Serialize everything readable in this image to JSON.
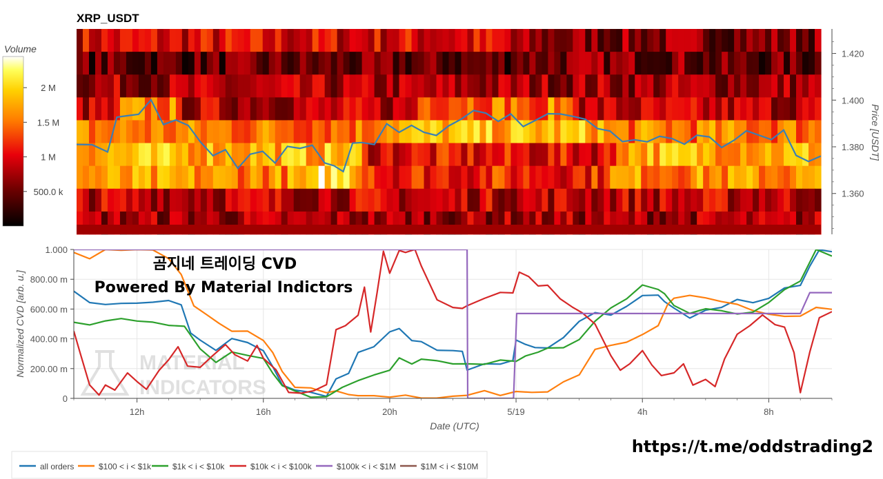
{
  "chart_data": [
    {
      "type": "heatmap",
      "title": "XRP_USDT",
      "ylabel": "Price [USDT]",
      "yticks": [
        "1.420",
        "1.400",
        "1.380",
        "1.360"
      ],
      "ytick_values": [
        1.42,
        1.4,
        1.38,
        1.36
      ],
      "ylim": [
        1.3425,
        1.4305
      ],
      "colorbar": {
        "title": "Volume",
        "ticks": [
          "2 M",
          "1.5 M",
          "1 M",
          "500.0 k"
        ],
        "tick_values": [
          2000000,
          1500000,
          1000000,
          500000
        ],
        "range": [
          0,
          2450000
        ]
      },
      "price_line": {
        "color": "#3a7fb5",
        "x": [
          10.0,
          10.5,
          11.0,
          11.3,
          11.6,
          12.0,
          12.4,
          12.8,
          13.2,
          13.6,
          14.0,
          14.4,
          14.8,
          15.2,
          15.6,
          16.0,
          16.4,
          16.8,
          17.2,
          17.6,
          18.0,
          18.3,
          18.6,
          18.9,
          19.2,
          19.6,
          20.0,
          20.4,
          20.8,
          21.2,
          21.6,
          22.0,
          22.4,
          22.8,
          23.2,
          23.6,
          24.0,
          24.4,
          24.8,
          25.2,
          25.6,
          26.0,
          26.4,
          26.8,
          27.2,
          27.6,
          28.0,
          28.4,
          28.8,
          29.2,
          29.6,
          30.0,
          30.4,
          30.8,
          31.2,
          31.6,
          32.0,
          32.4,
          32.8,
          33.2,
          33.6,
          34.0
        ],
        "y": [
          1.381,
          1.38,
          1.379,
          1.392,
          1.393,
          1.395,
          1.399,
          1.39,
          1.392,
          1.388,
          1.383,
          1.376,
          1.378,
          1.372,
          1.376,
          1.378,
          1.374,
          1.379,
          1.38,
          1.381,
          1.372,
          1.373,
          1.369,
          1.381,
          1.383,
          1.38,
          1.39,
          1.387,
          1.388,
          1.387,
          1.385,
          1.388,
          1.393,
          1.395,
          1.394,
          1.392,
          1.393,
          1.389,
          1.392,
          1.393,
          1.395,
          1.393,
          1.391,
          1.389,
          1.386,
          1.382,
          1.384,
          1.381,
          1.385,
          1.384,
          1.38,
          1.386,
          1.384,
          1.379,
          1.384,
          1.386,
          1.385,
          1.384,
          1.386,
          1.377,
          1.374,
          1.375
        ]
      }
    },
    {
      "type": "line",
      "xlabel": "Date (UTC)",
      "ylabel": "Normalized CVD [arb. u.]",
      "xticks": [
        "12h",
        "16h",
        "20h",
        "5/19",
        "4h",
        "8h"
      ],
      "xtick_values": [
        12,
        16,
        20,
        24,
        28,
        32
      ],
      "xlim": [
        10,
        34
      ],
      "yticks": [
        "1.000",
        "800.00 m",
        "600.00 m",
        "400.00 m",
        "200.00 m",
        "0"
      ],
      "ytick_values": [
        1,
        0.8,
        0.6,
        0.4,
        0.2,
        0
      ],
      "ylim": [
        0,
        1
      ],
      "legend_position": "bottom",
      "series": [
        {
          "name": "all orders",
          "color": "#1f77b4",
          "x": [
            10.0,
            10.5,
            11.0,
            11.5,
            12.0,
            12.5,
            13.0,
            13.4,
            13.7,
            14.0,
            14.5,
            15.0,
            15.5,
            16.0,
            16.3,
            16.6,
            17.0,
            17.5,
            18.0,
            18.3,
            18.7,
            19.0,
            19.5,
            20.0,
            20.3,
            20.7,
            21.0,
            21.5,
            22.0,
            22.3,
            22.45,
            23.0,
            23.5,
            23.9,
            24.0,
            24.3,
            24.6,
            25.0,
            25.5,
            26.0,
            26.5,
            27.0,
            27.5,
            28.0,
            28.5,
            28.7,
            29.0,
            29.5,
            30.0,
            30.5,
            31.0,
            31.5,
            32.0,
            32.5,
            33.0,
            33.3,
            33.6,
            34.0
          ],
          "y": [
            0.72,
            0.65,
            0.62,
            0.65,
            0.63,
            0.65,
            0.66,
            0.62,
            0.45,
            0.38,
            0.33,
            0.4,
            0.37,
            0.33,
            0.2,
            0.1,
            0.05,
            0.04,
            0.02,
            0.12,
            0.18,
            0.3,
            0.35,
            0.45,
            0.46,
            0.4,
            0.37,
            0.33,
            0.32,
            0.31,
            0.2,
            0.22,
            0.24,
            0.25,
            0.39,
            0.37,
            0.33,
            0.35,
            0.4,
            0.52,
            0.58,
            0.55,
            0.63,
            0.68,
            0.7,
            0.65,
            0.6,
            0.55,
            0.58,
            0.62,
            0.66,
            0.64,
            0.68,
            0.73,
            0.77,
            0.88,
            1.0,
            0.99
          ]
        },
        {
          "name": "$100 < i < $1k",
          "color": "#ff7f0e",
          "x": [
            10.0,
            10.5,
            11.0,
            11.5,
            12.0,
            12.5,
            13.0,
            13.4,
            13.8,
            14.2,
            14.6,
            15.0,
            15.5,
            16.0,
            16.3,
            16.6,
            17.0,
            17.5,
            18.0,
            18.3,
            18.7,
            19.0,
            19.5,
            20.0,
            20.5,
            21.0,
            21.5,
            22.0,
            22.45,
            23.0,
            23.5,
            24.0,
            24.5,
            25.0,
            25.5,
            26.0,
            26.5,
            27.0,
            27.5,
            28.0,
            28.5,
            28.8,
            29.0,
            29.5,
            30.0,
            30.5,
            31.0,
            31.5,
            32.0,
            32.5,
            33.0,
            33.5,
            34.0
          ],
          "y": [
            0.97,
            0.95,
            1.0,
            1.0,
            1.0,
            0.99,
            0.95,
            0.82,
            0.63,
            0.56,
            0.5,
            0.46,
            0.44,
            0.4,
            0.3,
            0.18,
            0.08,
            0.06,
            0.05,
            0.04,
            0.03,
            0.02,
            0.01,
            0.02,
            0.01,
            0.01,
            0.0,
            0.01,
            0.03,
            0.04,
            0.03,
            0.04,
            0.04,
            0.05,
            0.1,
            0.17,
            0.32,
            0.36,
            0.38,
            0.42,
            0.5,
            0.62,
            0.68,
            0.69,
            0.67,
            0.66,
            0.62,
            0.6,
            0.56,
            0.55,
            0.56,
            0.6,
            0.61
          ]
        },
        {
          "name": "$1k < i < $10k",
          "color": "#2ca02c",
          "x": [
            10.0,
            10.5,
            11.0,
            11.5,
            12.0,
            12.5,
            13.0,
            13.5,
            14.0,
            14.5,
            15.0,
            15.5,
            16.0,
            16.3,
            16.6,
            17.0,
            17.5,
            18.0,
            18.5,
            19.0,
            19.5,
            20.0,
            20.3,
            20.7,
            21.0,
            21.5,
            22.0,
            22.45,
            23.0,
            23.5,
            24.0,
            24.3,
            24.7,
            25.0,
            25.5,
            26.0,
            26.5,
            27.0,
            27.5,
            28.0,
            28.5,
            28.7,
            29.0,
            29.5,
            30.0,
            30.5,
            31.0,
            31.5,
            32.0,
            32.5,
            33.0,
            33.5,
            34.0
          ],
          "y": [
            0.5,
            0.5,
            0.52,
            0.53,
            0.53,
            0.5,
            0.5,
            0.48,
            0.33,
            0.25,
            0.3,
            0.3,
            0.26,
            0.17,
            0.09,
            0.04,
            0.02,
            0.0,
            0.08,
            0.12,
            0.15,
            0.2,
            0.26,
            0.24,
            0.26,
            0.25,
            0.24,
            0.22,
            0.24,
            0.25,
            0.25,
            0.29,
            0.3,
            0.35,
            0.33,
            0.4,
            0.52,
            0.6,
            0.68,
            0.75,
            0.74,
            0.7,
            0.62,
            0.58,
            0.59,
            0.6,
            0.56,
            0.58,
            0.65,
            0.72,
            0.8,
            1.0,
            0.96
          ]
        },
        {
          "name": "$10k < i < $100k",
          "color": "#d62728",
          "x": [
            10.0,
            10.2,
            10.5,
            10.8,
            11.0,
            11.3,
            11.7,
            12.0,
            12.3,
            12.7,
            13.0,
            13.3,
            13.6,
            14.0,
            14.4,
            14.8,
            15.1,
            15.5,
            15.8,
            16.0,
            16.4,
            16.8,
            17.2,
            17.6,
            18.0,
            18.3,
            18.6,
            19.0,
            19.2,
            19.4,
            19.6,
            19.8,
            20.0,
            20.3,
            20.5,
            20.8,
            21.0,
            21.5,
            22.0,
            22.3,
            22.45,
            23.0,
            23.5,
            23.9,
            24.1,
            24.4,
            24.7,
            25.0,
            25.4,
            25.8,
            26.1,
            26.5,
            27.0,
            27.3,
            27.6,
            28.0,
            28.3,
            28.6,
            29.0,
            29.3,
            29.6,
            30.0,
            30.3,
            30.6,
            31.0,
            31.4,
            31.8,
            32.2,
            32.5,
            32.8,
            33.0,
            33.3,
            33.6,
            34.0
          ],
          "y": [
            0.45,
            0.3,
            0.1,
            0.01,
            0.1,
            0.05,
            0.17,
            0.12,
            0.05,
            0.2,
            0.25,
            0.35,
            0.22,
            0.2,
            0.3,
            0.35,
            0.3,
            0.25,
            0.35,
            0.28,
            0.18,
            0.05,
            0.03,
            0.05,
            0.1,
            0.45,
            0.5,
            0.55,
            0.75,
            0.45,
            0.7,
            1.0,
            0.83,
            1.0,
            0.98,
            1.0,
            0.9,
            0.65,
            0.62,
            0.6,
            0.62,
            0.68,
            0.7,
            0.72,
            0.84,
            0.82,
            0.76,
            0.75,
            0.68,
            0.6,
            0.58,
            0.5,
            0.28,
            0.2,
            0.22,
            0.33,
            0.22,
            0.15,
            0.18,
            0.22,
            0.1,
            0.12,
            0.08,
            0.27,
            0.42,
            0.5,
            0.55,
            0.5,
            0.48,
            0.3,
            0.05,
            0.3,
            0.55,
            0.58
          ]
        },
        {
          "name": "$100k < i < $1M",
          "color": "#9467bd",
          "x": [
            10.0,
            22.45,
            22.47,
            23.9,
            23.92,
            24.02,
            27.0,
            33.0,
            33.3,
            34.0
          ],
          "y": [
            1.0,
            1.0,
            0.0,
            0.0,
            0.0,
            0.57,
            0.57,
            0.57,
            0.71,
            0.71
          ]
        },
        {
          "name": "$1M < i < $10M",
          "color": "#8c564b",
          "x": [],
          "y": []
        }
      ]
    }
  ],
  "overlay": {
    "line1": "곰지네 트레이딩 CVD",
    "line2": "Powered By Material Indictors",
    "url": "https://t.me/oddstrading2",
    "watermark_line1": "MATERIAL",
    "watermark_line2": "INDICATORS",
    "watermark_icon": "flask-icon"
  },
  "colors": {
    "heat_dark": "#000000",
    "heat_red": "#e8000b",
    "heat_orange": "#ffa500",
    "heat_yellow": "#ffff32",
    "heat_white": "#ffffff",
    "grid": "#e6e6e6"
  }
}
